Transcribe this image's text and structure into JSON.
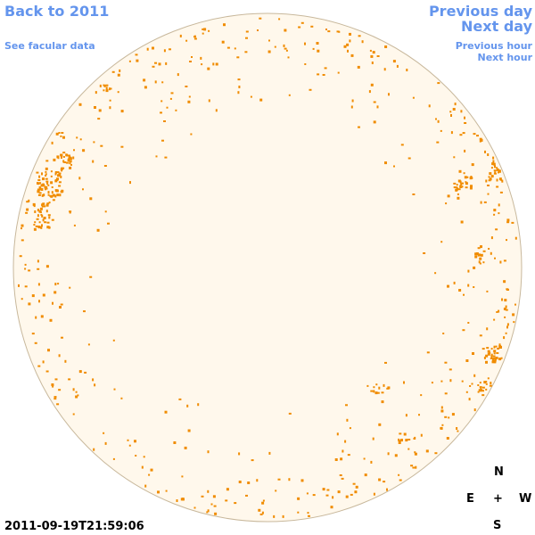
{
  "nav": {
    "back_label": "Back to 2011",
    "facular_label": "See facular data",
    "previous_day_label": "Previous day",
    "next_day_label": "Next day",
    "previous_hour_label": "Previous hour",
    "next_hour_label": "Next hour"
  },
  "compass": {
    "north": "N",
    "east": "E",
    "center": "+",
    "west": "W",
    "south": "S"
  },
  "timestamp": "2011-09-19T21:59:06",
  "colors": {
    "disk_fill": "#fff8ec",
    "disk_edge": "#c8b89c",
    "facula": "#f08c00",
    "link": "#6495ed"
  }
}
